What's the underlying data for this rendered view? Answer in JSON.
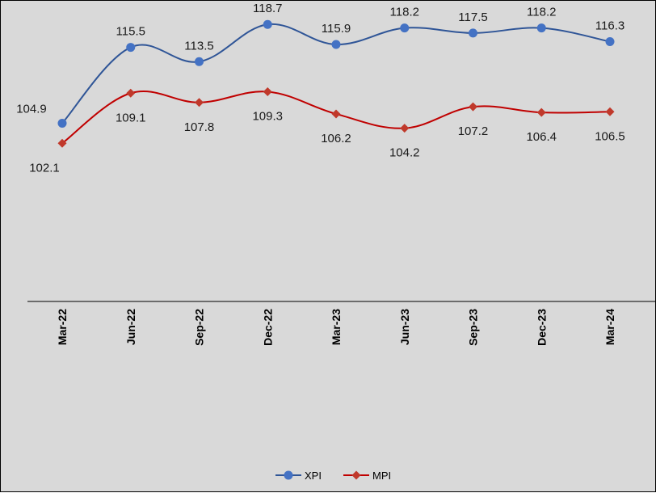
{
  "chart_data": {
    "type": "line",
    "categories": [
      "Mar-22",
      "Jun-22",
      "Sep-22",
      "Dec-22",
      "Mar-23",
      "Jun-23",
      "Sep-23",
      "Dec-23",
      "Mar-24"
    ],
    "series": [
      {
        "name": "XPI",
        "values": [
          104.9,
          115.5,
          113.5,
          118.7,
          115.9,
          118.2,
          117.5,
          118.2,
          116.3
        ],
        "color": "#2f5597",
        "marker": "circle",
        "marker_color": "#4472c4"
      },
      {
        "name": "MPI",
        "values": [
          102.1,
          109.1,
          107.8,
          109.3,
          106.2,
          104.2,
          107.2,
          106.4,
          106.5
        ],
        "color": "#c00000",
        "marker": "diamond",
        "marker_color": "#c0392b"
      }
    ],
    "title": "",
    "xlabel": "",
    "ylabel": "",
    "ylim": [
      80,
      122
    ],
    "gridlines": false,
    "smooth": true,
    "data_labels": true,
    "legend": "bottom-center"
  }
}
